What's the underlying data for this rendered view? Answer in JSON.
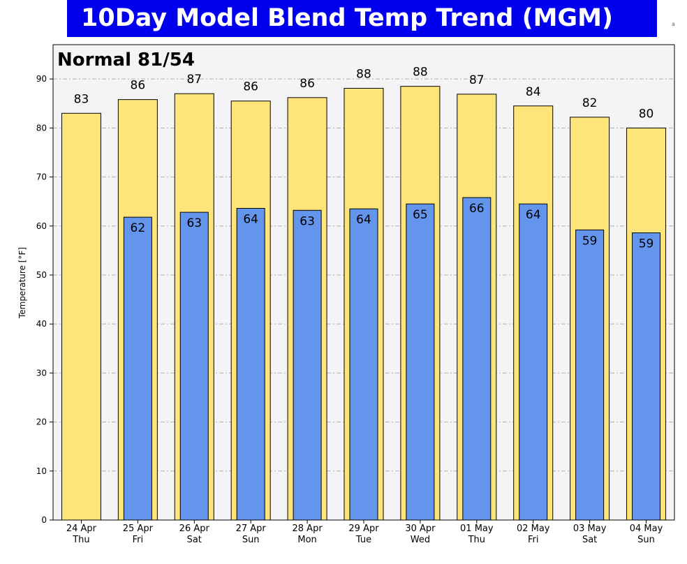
{
  "title": "10Day Model Blend Temp Trend  (MGM)",
  "corner_mark": "a",
  "colors": {
    "banner": "#0000ee",
    "high_bar": "#ffe47a",
    "low_bar": "#6495ed",
    "plot_bg": "#f4f4f6"
  },
  "chart_data": {
    "type": "bar",
    "annotation": "Normal 81/54",
    "ylabel": "Temperature [°F]",
    "ylim": [
      0,
      97
    ],
    "yticks": [
      0,
      10,
      20,
      30,
      40,
      50,
      60,
      70,
      80,
      90
    ],
    "grid": true,
    "categories": [
      [
        "24 Apr",
        "Thu"
      ],
      [
        "25 Apr",
        "Fri"
      ],
      [
        "26 Apr",
        "Sat"
      ],
      [
        "27 Apr",
        "Sun"
      ],
      [
        "28 Apr",
        "Mon"
      ],
      [
        "29 Apr",
        "Tue"
      ],
      [
        "30 Apr",
        "Wed"
      ],
      [
        "01 May",
        "Thu"
      ],
      [
        "02 May",
        "Fri"
      ],
      [
        "03 May",
        "Sat"
      ],
      [
        "04 May",
        "Sun"
      ]
    ],
    "series": [
      {
        "values": [
          83,
          85.8,
          87,
          85.5,
          86.2,
          88.1,
          88.5,
          86.9,
          84.5,
          82.2,
          80
        ],
        "labels": [
          "83",
          "86",
          "87",
          "86",
          "86",
          "88",
          "88",
          "87",
          "84",
          "82",
          "80"
        ]
      },
      {
        "values": [
          null,
          61.8,
          62.8,
          63.6,
          63.2,
          63.5,
          64.5,
          65.8,
          64.5,
          59.2,
          58.6
        ],
        "labels": [
          "",
          "62",
          "63",
          "64",
          "63",
          "64",
          "65",
          "66",
          "64",
          "59",
          "59"
        ]
      }
    ]
  }
}
